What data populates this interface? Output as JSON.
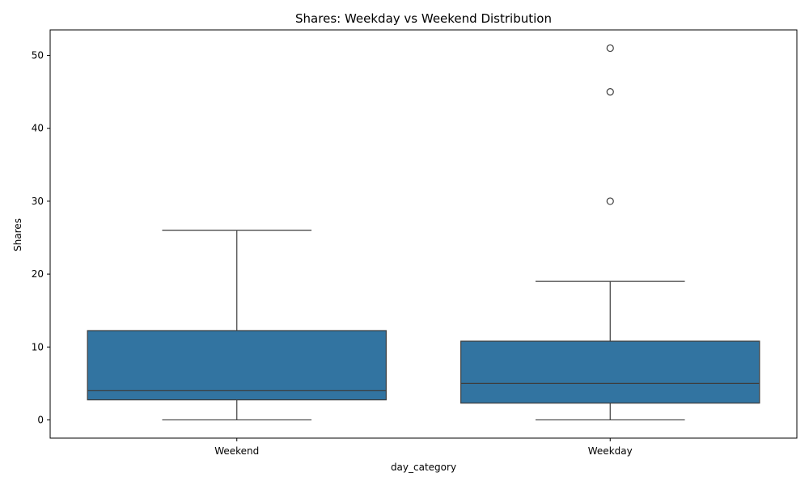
{
  "chart_data": {
    "type": "box",
    "title": "Shares: Weekday vs Weekend Distribution",
    "xlabel": "day_category",
    "ylabel": "Shares",
    "ylim": [
      -2.5,
      53.5
    ],
    "yticks": [
      0,
      10,
      20,
      30,
      40,
      50
    ],
    "grid": false,
    "colors": {
      "box": "#3274a1",
      "line": "#3d3d3d",
      "axis": "#000000"
    },
    "categories": [
      "Weekend",
      "Weekday"
    ],
    "boxes": [
      {
        "category": "Weekend",
        "whisker_low": 0,
        "q1": 2.75,
        "median": 4,
        "q3": 12.25,
        "whisker_high": 26,
        "outliers": []
      },
      {
        "category": "Weekday",
        "whisker_low": 0,
        "q1": 2.3,
        "median": 5,
        "q3": 10.8,
        "whisker_high": 19,
        "outliers": [
          30,
          45,
          51
        ]
      }
    ]
  }
}
